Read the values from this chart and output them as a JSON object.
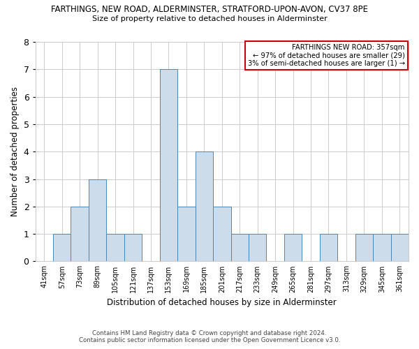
{
  "title": "FARTHINGS, NEW ROAD, ALDERMINSTER, STRATFORD-UPON-AVON, CV37 8PE",
  "subtitle": "Size of property relative to detached houses in Alderminster",
  "xlabel": "Distribution of detached houses by size in Alderminster",
  "ylabel": "Number of detached properties",
  "categories": [
    "41sqm",
    "57sqm",
    "73sqm",
    "89sqm",
    "105sqm",
    "121sqm",
    "137sqm",
    "153sqm",
    "169sqm",
    "185sqm",
    "201sqm",
    "217sqm",
    "233sqm",
    "249sqm",
    "265sqm",
    "281sqm",
    "297sqm",
    "313sqm",
    "329sqm",
    "345sqm",
    "361sqm"
  ],
  "values": [
    0,
    1,
    2,
    3,
    1,
    1,
    0,
    7,
    2,
    4,
    2,
    1,
    1,
    0,
    1,
    0,
    1,
    0,
    1,
    1,
    1
  ],
  "bar_color": "#ccdcea",
  "bar_edge_color": "#4488bb",
  "grid_color": "#cccccc",
  "background_color": "#ffffff",
  "annotation_text": "FARTHINGS NEW ROAD: 357sqm\n← 97% of detached houses are smaller (29)\n3% of semi-detached houses are larger (1) →",
  "annotation_box_color": "#ffffff",
  "annotation_box_edge_color": "#cc0000",
  "footnote_line1": "Contains HM Land Registry data © Crown copyright and database right 2024.",
  "footnote_line2": "Contains public sector information licensed under the Open Government Licence v3.0.",
  "ylim": [
    0,
    8
  ],
  "yticks": [
    0,
    1,
    2,
    3,
    4,
    5,
    6,
    7,
    8
  ]
}
